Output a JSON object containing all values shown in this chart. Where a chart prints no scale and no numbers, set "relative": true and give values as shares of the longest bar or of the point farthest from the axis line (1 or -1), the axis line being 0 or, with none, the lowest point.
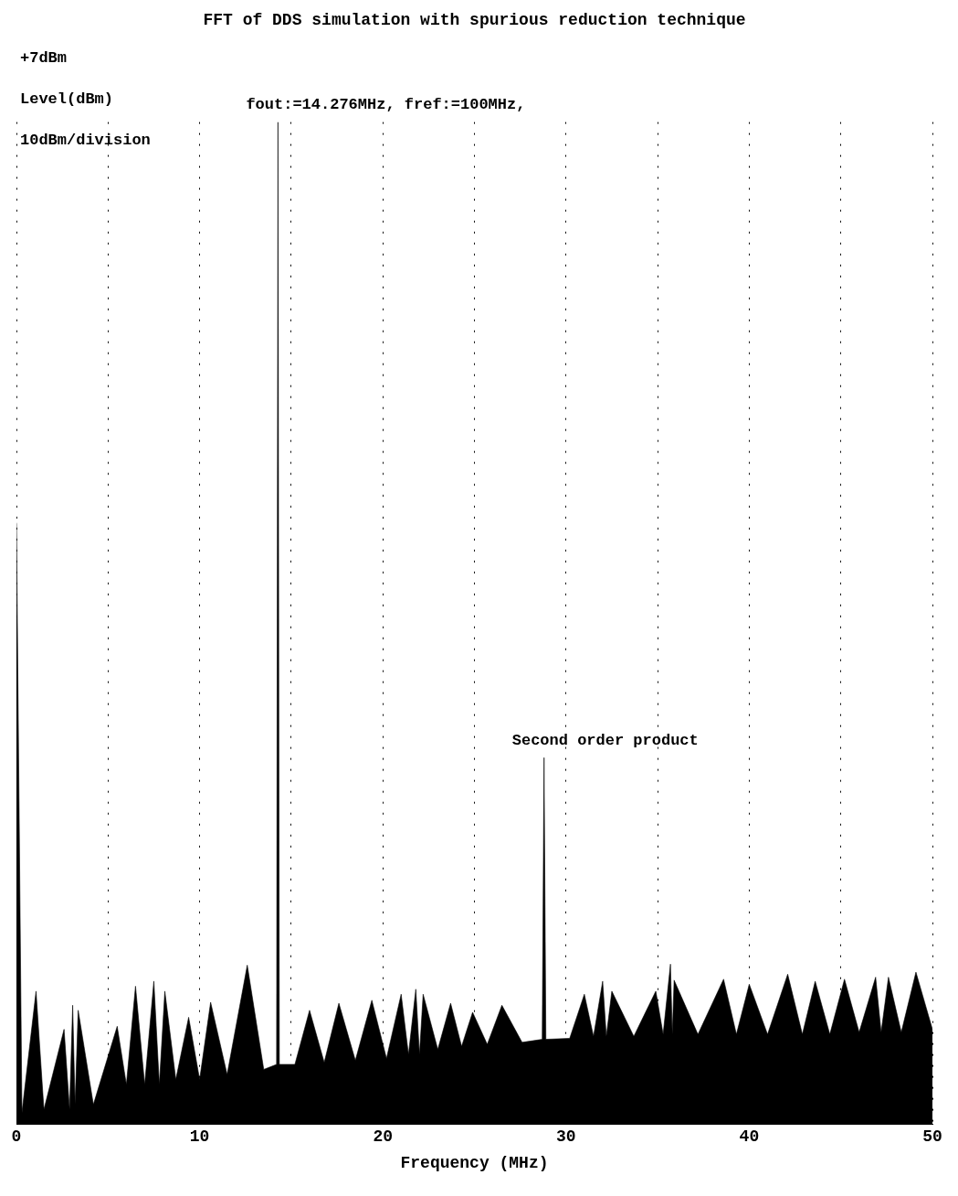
{
  "chart_data": {
    "type": "area",
    "title": "FFT of DDS simulation with spurious reduction technique",
    "xlabel": "Frequency (MHz)",
    "ylabel": "Level(dBm)",
    "relative": true,
    "xlim": [
      0,
      50
    ],
    "xticks": [
      0,
      {
        "value": 5,
        "label": null
      },
      10,
      {
        "value": 15,
        "label": null
      },
      20,
      {
        "value": 25,
        "label": null
      },
      30,
      {
        "value": 35,
        "label": null
      },
      40,
      {
        "value": 45,
        "label": null
      },
      50
    ],
    "grid": "x",
    "legend": false,
    "annotations": [
      "+7dBm",
      "10dBm/division",
      {
        "text": "fout:=14.276MHz, fref:=100MHz,",
        "x": 14.276,
        "y": 1
      },
      {
        "text": "Second order product",
        "x": 28.8,
        "y": 0.366
      }
    ],
    "series": [
      {
        "color": "#000000",
        "x": [
          0,
          0.3,
          1.07,
          1.5,
          2.6,
          2.9,
          3.07,
          3.2,
          3.37,
          4.2,
          5.5,
          6.0,
          6.5,
          7.0,
          7.5,
          7.8,
          8.1,
          8.7,
          9.4,
          10.0,
          10.6,
          11.5,
          12.6,
          13.5,
          14.2,
          14.276,
          14.35,
          15.2,
          16.0,
          16.8,
          17.6,
          18.5,
          19.4,
          20.2,
          21.0,
          21.4,
          21.8,
          22.0,
          22.2,
          23.0,
          23.7,
          24.3,
          24.9,
          25.7,
          26.5,
          27.6,
          28.7,
          28.8,
          28.9,
          30.2,
          31.0,
          31.5,
          32.0,
          32.2,
          32.5,
          33.7,
          34.9,
          35.3,
          35.7,
          35.8,
          35.9,
          37.2,
          38.6,
          39.3,
          40.0,
          41.0,
          42.1,
          42.9,
          43.6,
          44.4,
          45.2,
          46.0,
          46.9,
          47.2,
          47.6,
          48.3,
          49.1,
          50.0
        ],
        "values": [
          0.6,
          0.012,
          0.133,
          0.015,
          0.095,
          0.015,
          0.119,
          0.02,
          0.114,
          0.02,
          0.098,
          0.04,
          0.138,
          0.04,
          0.143,
          0.04,
          0.133,
          0.045,
          0.107,
          0.045,
          0.122,
          0.05,
          0.159,
          0.055,
          0.06,
          1.0,
          0.06,
          0.06,
          0.114,
          0.062,
          0.121,
          0.064,
          0.124,
          0.066,
          0.13,
          0.07,
          0.135,
          0.07,
          0.13,
          0.075,
          0.121,
          0.078,
          0.112,
          0.08,
          0.119,
          0.082,
          0.085,
          0.366,
          0.085,
          0.086,
          0.13,
          0.088,
          0.143,
          0.088,
          0.133,
          0.088,
          0.133,
          0.09,
          0.16,
          0.09,
          0.144,
          0.09,
          0.145,
          0.09,
          0.14,
          0.09,
          0.15,
          0.09,
          0.143,
          0.09,
          0.145,
          0.092,
          0.147,
          0.092,
          0.147,
          0.092,
          0.152,
          0.095
        ]
      }
    ]
  }
}
